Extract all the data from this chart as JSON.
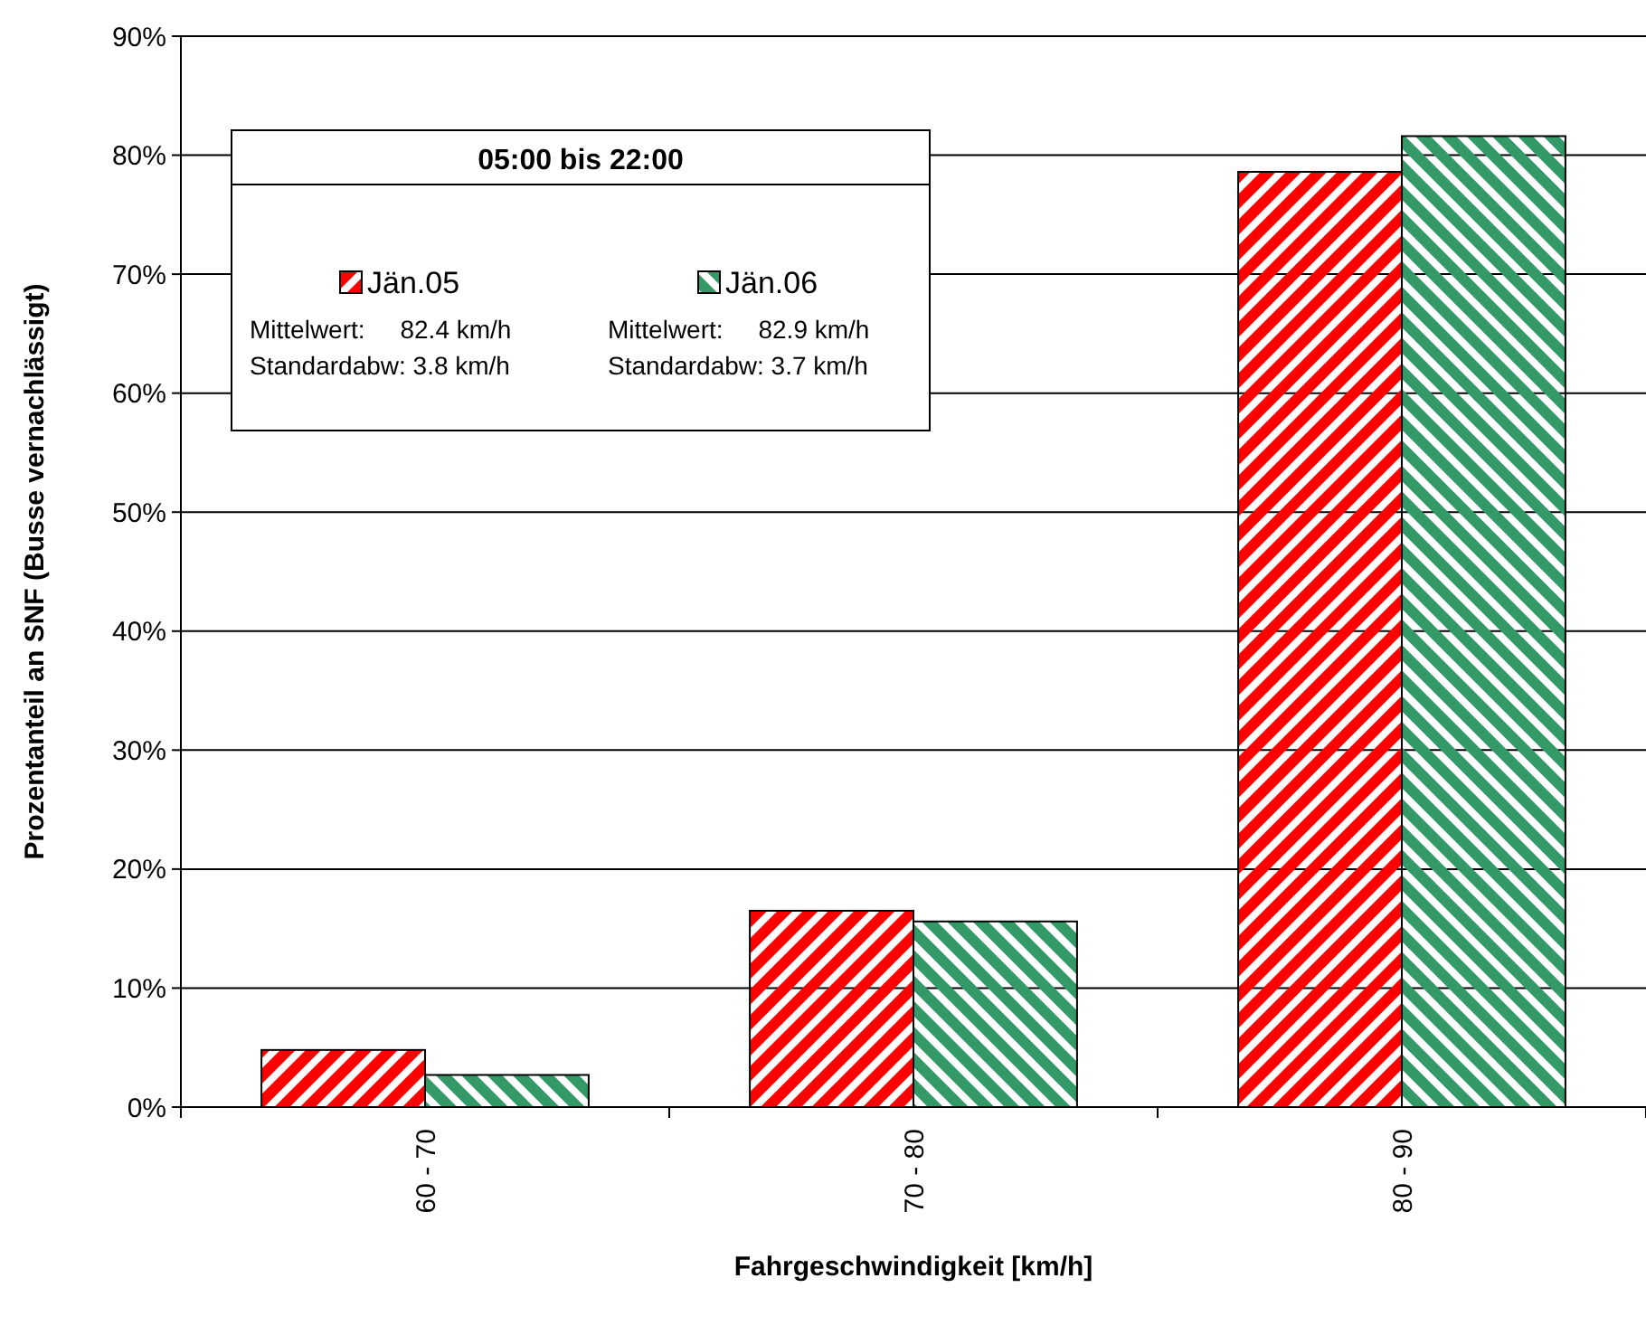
{
  "chart_data": {
    "type": "bar",
    "xlabel": "Fahrgeschwindigkeit [km/h]",
    "ylabel": "Prozentanteil an SNF (Busse vernachlässigt)",
    "legend_title": "05:00 bis 22:00",
    "categories": [
      "60 - 70",
      "70 - 80",
      "80 - 90"
    ],
    "series": [
      {
        "name": "Jän.05",
        "color": "#ff0000",
        "values": [
          4.8,
          16.5,
          78.6
        ]
      },
      {
        "name": "Jän.06",
        "color": "#339966",
        "values": [
          2.7,
          15.6,
          81.6
        ]
      }
    ],
    "ylim": [
      0,
      90
    ],
    "yticks": [
      {
        "value": 0,
        "label": "0%"
      },
      {
        "value": 10,
        "label": "10%"
      },
      {
        "value": 20,
        "label": "20%"
      },
      {
        "value": 30,
        "label": "30%"
      },
      {
        "value": 40,
        "label": "40%"
      },
      {
        "value": 50,
        "label": "50%"
      },
      {
        "value": 60,
        "label": "60%"
      },
      {
        "value": 70,
        "label": "70%"
      },
      {
        "value": 80,
        "label": "80%"
      },
      {
        "value": 90,
        "label": "90%"
      }
    ],
    "grid": "y",
    "legend": "top left",
    "annotations": [
      "Mittelwert:     82.4 km/h",
      "Standardabw: 3.8 km/h",
      "Mittelwert:     82.9 km/h",
      "Standardabw: 3.7 km/h"
    ]
  }
}
